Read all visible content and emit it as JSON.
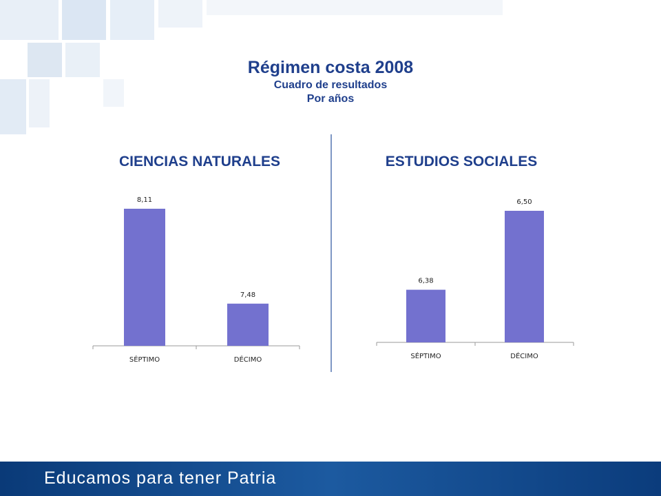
{
  "header": {
    "title": "Régimen costa 2008",
    "subtitle1": "Cuadro de resultados",
    "subtitle2": "Por años"
  },
  "footer": {
    "text": "Educamos para tener Patria"
  },
  "colors": {
    "bar": "#7371cf",
    "title": "#1f3f8c",
    "footer": "#0b3c7c"
  },
  "chart_data": [
    {
      "type": "bar",
      "title": "CIENCIAS NATURALES",
      "categories": [
        "SÉPTIMO",
        "DÉCIMO"
      ],
      "values": [
        8.11,
        7.48
      ],
      "value_labels": [
        "8,11",
        "7,48"
      ],
      "grid": false
    },
    {
      "type": "bar",
      "title": "ESTUDIOS SOCIALES",
      "categories": [
        "SÉPTIMO",
        "DÉCIMO"
      ],
      "values": [
        6.38,
        6.5
      ],
      "value_labels": [
        "6,38",
        "6,50"
      ],
      "grid": false
    }
  ]
}
